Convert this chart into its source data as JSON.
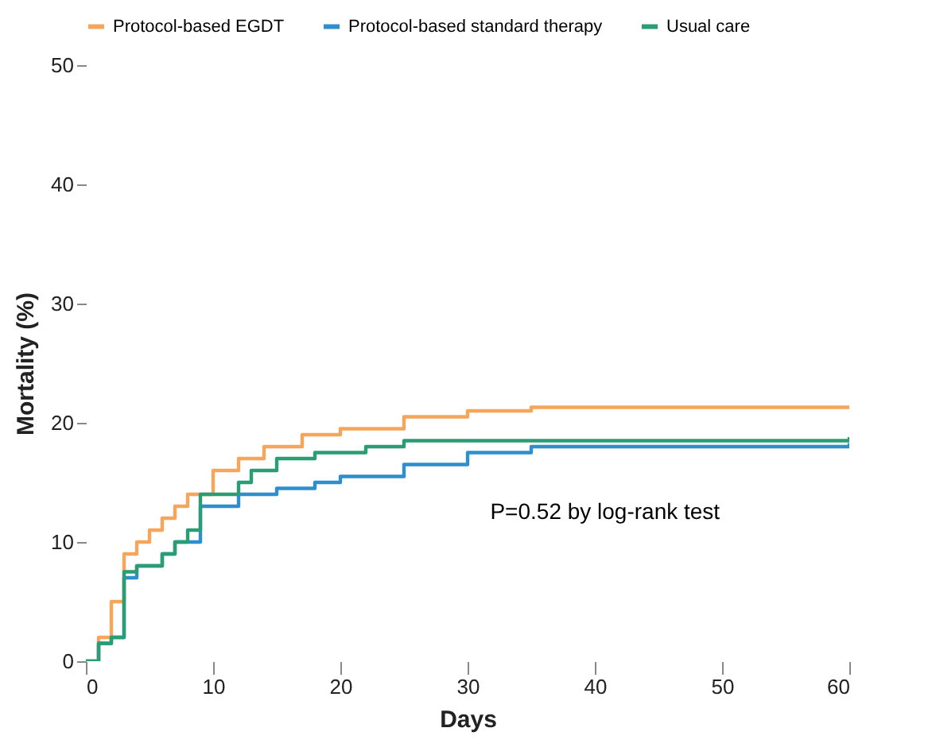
{
  "chart_data": {
    "type": "step",
    "xlabel": "Days",
    "ylabel": "Mortality (%)",
    "xlim": [
      0,
      60
    ],
    "xticks": [
      0,
      10,
      20,
      30,
      40,
      50,
      60
    ],
    "ylim": [
      0,
      50
    ],
    "yticks": [
      0,
      10,
      20,
      30,
      40,
      50
    ],
    "grid": false,
    "legend": "top",
    "line_style": "solid",
    "annotations": [
      "P=0.52 by log-rank test"
    ],
    "series": [
      {
        "name": "Protocol-based EGDT",
        "color": "#f5a65b",
        "x": [
          0,
          1,
          2,
          3,
          4,
          5,
          6,
          7,
          8,
          10,
          12,
          14,
          17,
          20,
          25,
          30,
          35,
          60
        ],
        "values": [
          0,
          2,
          5,
          9,
          10,
          11,
          12,
          13,
          14,
          16,
          17,
          18,
          19,
          19.5,
          20.5,
          21,
          21.3,
          21.3
        ]
      },
      {
        "name": "Protocol-based standard therapy",
        "color": "#2f8fce",
        "x": [
          0,
          1,
          2,
          3,
          4,
          6,
          7,
          9,
          11,
          12,
          15,
          18,
          20,
          25,
          30,
          35,
          60
        ],
        "values": [
          0,
          1.5,
          2,
          7,
          8,
          9,
          10,
          13,
          13,
          14,
          14.5,
          15,
          15.5,
          16.5,
          17.5,
          18,
          18.3
        ]
      },
      {
        "name": "Usual care",
        "color": "#2a9d74",
        "x": [
          0,
          1,
          2,
          3,
          4,
          6,
          7,
          8,
          9,
          12,
          13,
          15,
          18,
          22,
          25,
          60
        ],
        "values": [
          0,
          1.5,
          2,
          7.5,
          8,
          9,
          10,
          11,
          14,
          15,
          16,
          17,
          17.5,
          18,
          18.5,
          18.8
        ]
      }
    ]
  }
}
